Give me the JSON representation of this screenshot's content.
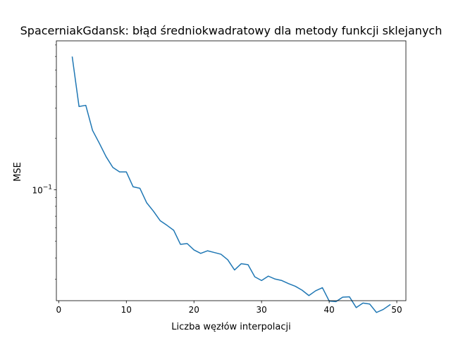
{
  "chart_data": {
    "type": "line",
    "title": "SpacerniakGdansk: błąd średniokwadratowy dla metody funkcji sklejanych",
    "xlabel": "Liczba węzłów interpolacji",
    "ylabel": "MSE",
    "xlim": [
      -0.35,
      51.35
    ],
    "ylim": [
      0.0225,
      0.74
    ],
    "yscale": "log",
    "xticks": [
      0,
      10,
      20,
      30,
      40,
      50
    ],
    "xtick_labels": [
      "0",
      "10",
      "20",
      "30",
      "40",
      "50"
    ],
    "yticks": [
      0.1
    ],
    "ytick_labels": [
      "10",
      "−1"
    ],
    "grid": false,
    "legend": "none",
    "series": [
      {
        "color": "#1f77b4",
        "x": [
          2,
          3,
          4,
          5,
          6,
          7,
          8,
          9,
          10,
          11,
          12,
          13,
          14,
          15,
          16,
          17,
          18,
          19,
          20,
          21,
          22,
          23,
          24,
          25,
          26,
          27,
          28,
          29,
          30,
          31,
          32,
          33,
          34,
          35,
          36,
          37,
          38,
          39,
          40,
          41,
          42,
          43,
          44,
          45,
          46,
          47,
          48,
          49
        ],
        "y": [
          0.595,
          0.306,
          0.311,
          0.222,
          0.187,
          0.156,
          0.135,
          0.127,
          0.127,
          0.104,
          0.102,
          0.084,
          0.075,
          0.066,
          0.062,
          0.058,
          0.048,
          0.0485,
          0.0445,
          0.0425,
          0.044,
          0.043,
          0.042,
          0.039,
          0.034,
          0.037,
          0.0365,
          0.031,
          0.0295,
          0.0313,
          0.0301,
          0.0295,
          0.0283,
          0.0273,
          0.0259,
          0.0241,
          0.0257,
          0.0268,
          0.0224,
          0.0222,
          0.0236,
          0.0237,
          0.0205,
          0.0218,
          0.0215,
          0.0192,
          0.02,
          0.0213
        ]
      }
    ]
  }
}
